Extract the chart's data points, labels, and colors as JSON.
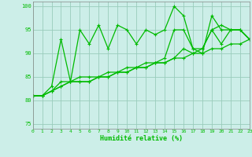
{
  "title": "",
  "xlabel": "Humidité relative (%)",
  "ylabel": "",
  "bg_color": "#cceee8",
  "line_color": "#00bb00",
  "grid_color": "#99ccbb",
  "xlim": [
    0,
    23
  ],
  "ylim": [
    74,
    101
  ],
  "yticks": [
    75,
    80,
    85,
    90,
    95,
    100
  ],
  "xticks": [
    0,
    1,
    2,
    3,
    4,
    5,
    6,
    7,
    8,
    9,
    10,
    11,
    12,
    13,
    14,
    15,
    16,
    17,
    18,
    19,
    20,
    21,
    22,
    23
  ],
  "series1": [
    81,
    81,
    83,
    93,
    84,
    95,
    92,
    96,
    91,
    96,
    95,
    92,
    95,
    94,
    95,
    100,
    98,
    91,
    90,
    98,
    95,
    95,
    95,
    93
  ],
  "series2": [
    81,
    81,
    82,
    83,
    84,
    84,
    84,
    85,
    85,
    86,
    86,
    87,
    87,
    88,
    88,
    89,
    89,
    90,
    90,
    91,
    91,
    92,
    92,
    93
  ],
  "series3": [
    81,
    81,
    82,
    84,
    84,
    85,
    85,
    85,
    86,
    86,
    87,
    87,
    88,
    88,
    89,
    95,
    95,
    91,
    91,
    95,
    96,
    95,
    95,
    93
  ],
  "series4": [
    81,
    81,
    82,
    83,
    84,
    84,
    84,
    85,
    85,
    86,
    86,
    87,
    87,
    88,
    88,
    89,
    91,
    90,
    91,
    95,
    92,
    95,
    95,
    93
  ],
  "marker": "+",
  "markersize": 3.5,
  "linewidth": 0.9,
  "tick_fontsize": 4.5,
  "xlabel_fontsize": 6
}
